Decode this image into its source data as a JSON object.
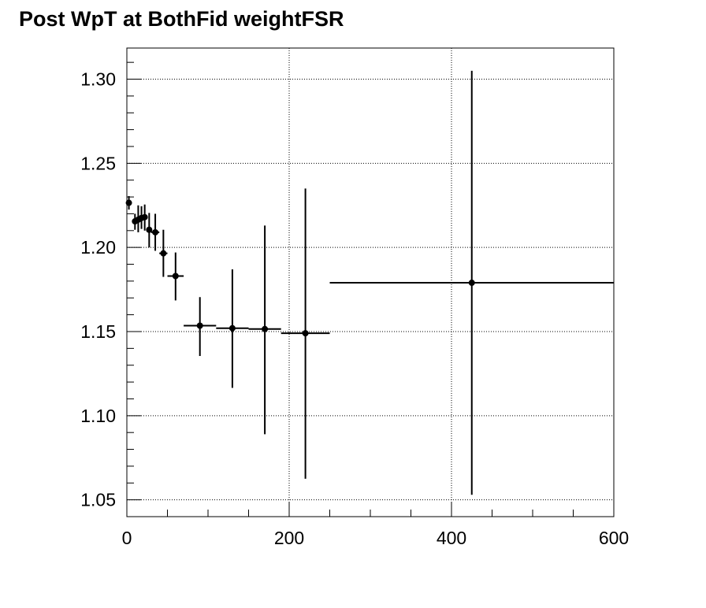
{
  "chart_data": {
    "type": "scatter",
    "title": "Post WpT at BothFid weightFSR",
    "xlabel": "",
    "ylabel": "",
    "xlim": [
      0,
      600
    ],
    "ylim": [
      1.04,
      1.3185
    ],
    "grid": true,
    "legend": "none",
    "x_ticks": [
      0,
      200,
      400,
      600
    ],
    "x_tick_labels": [
      "0",
      "200",
      "400",
      "600"
    ],
    "y_ticks": [
      1.05,
      1.1,
      1.15,
      1.2,
      1.25,
      1.3
    ],
    "y_tick_labels": [
      "1.05",
      "1.10",
      "1.15",
      "1.20",
      "1.25",
      "1.30"
    ],
    "series": [
      {
        "color": "#000000",
        "points": [
          {
            "x": 2.5,
            "xlow": 0,
            "xhigh": 5,
            "y": 1.2265,
            "ylow": 1.2225,
            "yhigh": 1.2305
          },
          {
            "x": 10,
            "xlow": 8,
            "xhigh": 12,
            "y": 1.2155,
            "ylow": 1.2105,
            "yhigh": 1.22
          },
          {
            "x": 14,
            "xlow": 12,
            "xhigh": 16,
            "y": 1.2165,
            "ylow": 1.209,
            "yhigh": 1.225
          },
          {
            "x": 18,
            "xlow": 16,
            "xhigh": 20,
            "y": 1.2175,
            "ylow": 1.211,
            "yhigh": 1.2245
          },
          {
            "x": 22,
            "xlow": 20,
            "xhigh": 25,
            "y": 1.218,
            "ylow": 1.21,
            "yhigh": 1.2255
          },
          {
            "x": 27.5,
            "xlow": 25,
            "xhigh": 30,
            "y": 1.2105,
            "ylow": 1.2,
            "yhigh": 1.2205
          },
          {
            "x": 35,
            "xlow": 30,
            "xhigh": 40,
            "y": 1.209,
            "ylow": 1.198,
            "yhigh": 1.22
          },
          {
            "x": 45,
            "xlow": 40,
            "xhigh": 50,
            "y": 1.1965,
            "ylow": 1.1825,
            "yhigh": 1.2105
          },
          {
            "x": 60,
            "xlow": 50,
            "xhigh": 70,
            "y": 1.183,
            "ylow": 1.1685,
            "yhigh": 1.197
          },
          {
            "x": 90,
            "xlow": 70,
            "xhigh": 110,
            "y": 1.1535,
            "ylow": 1.1355,
            "yhigh": 1.1705
          },
          {
            "x": 130,
            "xlow": 110,
            "xhigh": 150,
            "y": 1.152,
            "ylow": 1.1165,
            "yhigh": 1.187
          },
          {
            "x": 170,
            "xlow": 150,
            "xhigh": 190,
            "y": 1.1515,
            "ylow": 1.089,
            "yhigh": 1.213
          },
          {
            "x": 220,
            "xlow": 190,
            "xhigh": 250,
            "y": 1.149,
            "ylow": 1.0625,
            "yhigh": 1.235
          },
          {
            "x": 425,
            "xlow": 250,
            "xhigh": 600,
            "y": 1.179,
            "ylow": 1.053,
            "yhigh": 1.305
          }
        ]
      }
    ]
  }
}
